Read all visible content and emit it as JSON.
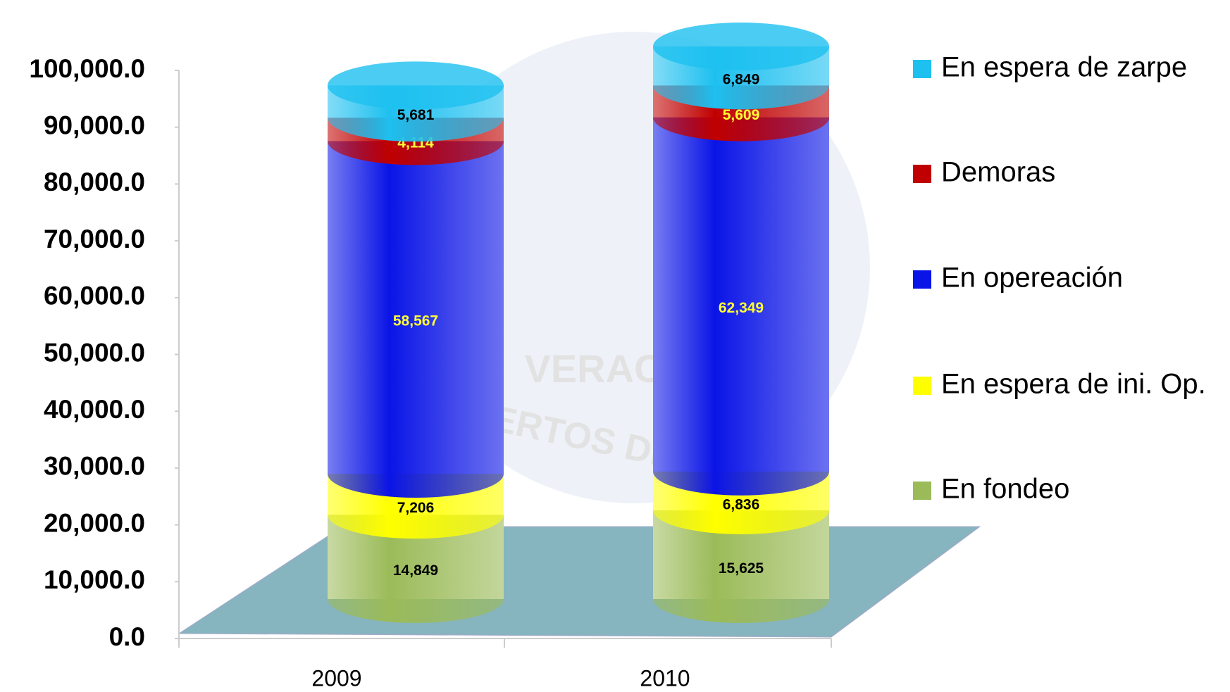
{
  "chart_data": {
    "type": "stacked-cylinder",
    "watermark": [
      "VERACRUZ",
      "PUERTOS DE MÉXICO"
    ],
    "categories": [
      "2009",
      "2010"
    ],
    "series": [
      {
        "name": "En fondeo",
        "color": "#9bbb59",
        "label_color": "#000000",
        "values": [
          14849,
          15625
        ],
        "value_labels": [
          "14,849",
          "15,625"
        ]
      },
      {
        "name": "En espera de  ini. Op.",
        "color": "#ffff00",
        "label_color": "#000000",
        "values": [
          7206,
          6836
        ],
        "value_labels": [
          "7,206",
          "6,836"
        ]
      },
      {
        "name": "En opereación",
        "color": "#0a14e6",
        "label_color": "#ffff33",
        "values": [
          58567,
          62349
        ],
        "value_labels": [
          "58,567",
          "62,349"
        ]
      },
      {
        "name": "Demoras",
        "color": "#c00000",
        "label_color": "#ffff33",
        "values": [
          4114,
          5609
        ],
        "value_labels": [
          "4,114",
          "5,609"
        ]
      },
      {
        "name": "En espera de zarpe",
        "color": "#1ec0f0",
        "label_color": "#000000",
        "values": [
          5681,
          6849
        ],
        "value_labels": [
          "5,681",
          "6,849"
        ]
      }
    ],
    "ylim": [
      0,
      100000
    ],
    "yticks": [
      {
        "value": 0,
        "label": "0.0"
      },
      {
        "value": 10000,
        "label": "10,000.0"
      },
      {
        "value": 20000,
        "label": "20,000.0"
      },
      {
        "value": 30000,
        "label": "30,000.0"
      },
      {
        "value": 40000,
        "label": "40,000.0"
      },
      {
        "value": 50000,
        "label": "50,000.0"
      },
      {
        "value": 60000,
        "label": "60,000.0"
      },
      {
        "value": 70000,
        "label": "70,000.0"
      },
      {
        "value": 80000,
        "label": "80,000.0"
      },
      {
        "value": 90000,
        "label": "90,000.0"
      },
      {
        "value": 100000,
        "label": "100,000.0"
      }
    ],
    "legend": "right"
  }
}
